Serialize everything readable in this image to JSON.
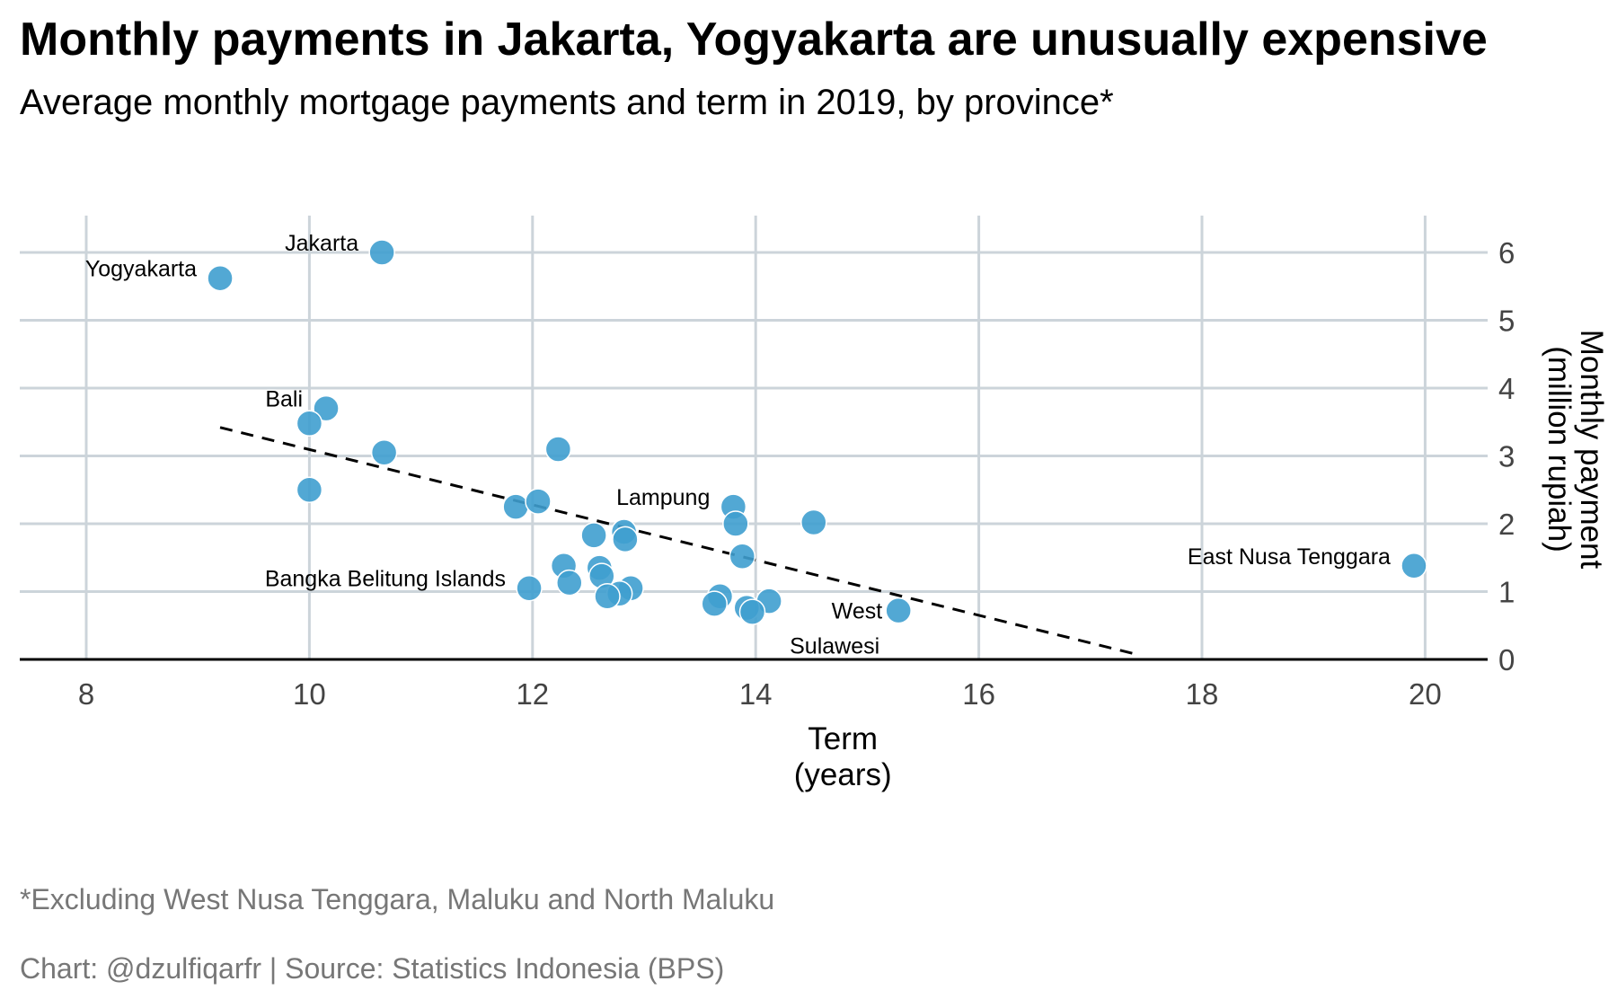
{
  "title": "Monthly payments in Jakarta, Yogyakarta are unusually expensive",
  "subtitle": "Average monthly mortgage payments and term in 2019, by province*",
  "note": "*Excluding West Nusa Tenggara, Maluku and North Maluku",
  "credit": "Chart: @dzulfiqarfr | Source: Statistics Indonesia (BPS)",
  "chart_data": {
    "type": "scatter",
    "xlabel_lines": [
      "Term",
      "(years)"
    ],
    "ylabel_lines": [
      "Monthly payment",
      "(million rupiah)"
    ],
    "xlim": [
      7.5,
      20.6
    ],
    "ylim": [
      0,
      6.5
    ],
    "x_ticks": [
      8,
      10,
      12,
      14,
      16,
      18,
      20
    ],
    "y_ticks": [
      0,
      1,
      2,
      3,
      4,
      5,
      6
    ],
    "y_axis_position": "right",
    "grid": true,
    "point_color": "#3f9fcf",
    "trend_line": {
      "style": "dashed",
      "color": "#000000",
      "x": [
        9.2,
        17.4
      ],
      "y": [
        3.42,
        0.08
      ]
    },
    "points": [
      {
        "x": 10.65,
        "y": 6.0,
        "label": "Jakarta"
      },
      {
        "x": 9.2,
        "y": 5.62,
        "label": "Yogyakarta"
      },
      {
        "x": 10.15,
        "y": 3.7,
        "label": "Bali"
      },
      {
        "x": 10.0,
        "y": 3.48
      },
      {
        "x": 10.67,
        "y": 3.05
      },
      {
        "x": 10.0,
        "y": 2.5
      },
      {
        "x": 12.23,
        "y": 3.1
      },
      {
        "x": 11.85,
        "y": 2.25
      },
      {
        "x": 12.05,
        "y": 2.33
      },
      {
        "x": 12.55,
        "y": 1.83
      },
      {
        "x": 12.82,
        "y": 1.88
      },
      {
        "x": 12.83,
        "y": 1.77
      },
      {
        "x": 13.8,
        "y": 2.25,
        "label": "Lampung"
      },
      {
        "x": 13.82,
        "y": 2.0
      },
      {
        "x": 14.52,
        "y": 2.02
      },
      {
        "x": 13.88,
        "y": 1.52
      },
      {
        "x": 12.28,
        "y": 1.38
      },
      {
        "x": 12.6,
        "y": 1.35
      },
      {
        "x": 12.62,
        "y": 1.23
      },
      {
        "x": 12.33,
        "y": 1.13
      },
      {
        "x": 11.97,
        "y": 1.05,
        "label": "Bangka Belitung Islands"
      },
      {
        "x": 12.88,
        "y": 1.05
      },
      {
        "x": 12.78,
        "y": 0.97
      },
      {
        "x": 12.67,
        "y": 0.93
      },
      {
        "x": 13.68,
        "y": 0.93
      },
      {
        "x": 13.63,
        "y": 0.82
      },
      {
        "x": 14.12,
        "y": 0.86
      },
      {
        "x": 13.92,
        "y": 0.76
      },
      {
        "x": 13.97,
        "y": 0.7
      },
      {
        "x": 15.28,
        "y": 0.72,
        "label": "West Sulawesi"
      },
      {
        "x": 19.9,
        "y": 1.38,
        "label": "East Nusa Tenggara"
      }
    ]
  }
}
